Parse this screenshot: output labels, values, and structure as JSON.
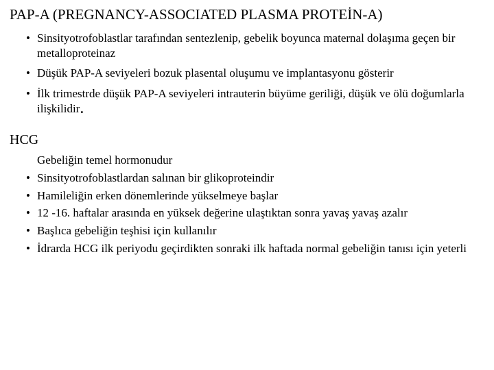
{
  "section1": {
    "heading": "PAP-A (PREGNANCY-ASSOCIATED PLASMA PROTEİN-A)",
    "items": [
      "Sinsityotrofoblastlar tarafından sentezlenip, gebelik boyunca maternal dolaşıma geçen bir metalloproteinaz",
      "Düşük PAP-A seviyeleri bozuk plasental oluşumu ve implantasyonu gösterir"
    ],
    "item_last_prefix": "İlk trimestrde düşük PAP-A seviyeleri intrauterin büyüme geriliği, düşük ve ölü doğumlarla ilişkilidir",
    "item_last_dot": "."
  },
  "section2": {
    "heading": "HCG",
    "lead": "Gebeliğin temel hormonudur",
    "items": [
      "Sinsityotrofoblastlardan salınan bir glikoproteindir",
      "Hamileliğin erken dönemlerinde yükselmeye başlar",
      "12 -16. haftalar arasında en yüksek değerine ulaştıktan sonra yavaş yavaş azalır",
      "Başlıca gebeliğin teşhisi için kullanılır",
      "İdrarda HCG ilk periyodu geçirdikten sonraki ilk haftada normal gebeliğin tanısı için yeterli"
    ]
  }
}
